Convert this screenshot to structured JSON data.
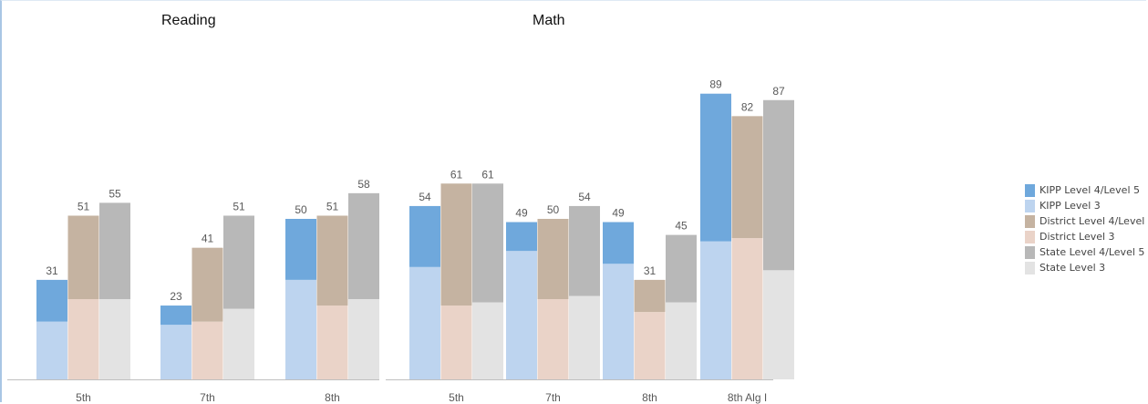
{
  "chart_data": {
    "type": "bar",
    "sections": [
      {
        "title": "Reading",
        "categories": [
          "5th",
          "7th",
          "8th"
        ]
      },
      {
        "title": "Math",
        "categories": [
          "5th",
          "7th",
          "8th",
          "8th Alg I"
        ]
      }
    ],
    "groups": [
      {
        "section": 0,
        "category": "5th",
        "kipp": {
          "level3": 18,
          "level45": 13,
          "label": "31"
        },
        "district": {
          "level3": 25,
          "level45": 26,
          "label": "51"
        },
        "state": {
          "level3": 25,
          "level45": 30,
          "label": "55"
        }
      },
      {
        "section": 0,
        "category": "7th",
        "kipp": {
          "level3": 17,
          "level45": 6,
          "label": "23"
        },
        "district": {
          "level3": 18,
          "level45": 23,
          "label": "41"
        },
        "state": {
          "level3": 22,
          "level45": 29,
          "label": "51"
        }
      },
      {
        "section": 0,
        "category": "8th",
        "kipp": {
          "level3": 31,
          "level45": 19,
          "label": "50"
        },
        "district": {
          "level3": 23,
          "level45": 28,
          "label": "51"
        },
        "state": {
          "level3": 25,
          "level45": 33,
          "label": "58"
        }
      },
      {
        "section": 1,
        "category": "5th",
        "kipp": {
          "level3": 35,
          "level45": 19,
          "label": "54"
        },
        "district": {
          "level3": 23,
          "level45": 38,
          "label": "61"
        },
        "state": {
          "level3": 24,
          "level45": 37,
          "label": "61"
        }
      },
      {
        "section": 1,
        "category": "7th",
        "kipp": {
          "level3": 40,
          "level45": 9,
          "label": "49"
        },
        "district": {
          "level3": 25,
          "level45": 25,
          "label": "50"
        },
        "state": {
          "level3": 26,
          "level45": 28,
          "label": "54"
        }
      },
      {
        "section": 1,
        "category": "8th",
        "kipp": {
          "level3": 36,
          "level45": 13,
          "label": "49"
        },
        "district": {
          "level3": 21,
          "level45": 10,
          "label": "31"
        },
        "state": {
          "level3": 24,
          "level45": 21,
          "label": "45"
        }
      },
      {
        "section": 1,
        "category": "8th Alg I",
        "kipp": {
          "level3": 43,
          "level45": 46,
          "label": "89"
        },
        "district": {
          "level3": 44,
          "level45": 38,
          "label": "82"
        },
        "state": {
          "level3": 34,
          "level45": 53,
          "label": "87"
        }
      }
    ],
    "legend": [
      {
        "label": "KIPP Level 4/Level 5",
        "color": "#6fa8dc"
      },
      {
        "label": "KIPP Level 3",
        "color": "#bdd4ef"
      },
      {
        "label": "District Level 4/Level 5",
        "color": "#c5b3a1"
      },
      {
        "label": "District Level 3",
        "color": "#ead3c8"
      },
      {
        "label": "State Level 4/Level 5",
        "color": "#b8b8b8"
      },
      {
        "label": "State Level 3",
        "color": "#e3e3e3"
      }
    ],
    "legend_position": "right",
    "colors": {
      "kipp_level45": "#6fa8dc",
      "kipp_level3": "#bdd4ef",
      "district_level45": "#c5b3a1",
      "district_level3": "#ead3c8",
      "state_level45": "#b8b8b8",
      "state_level3": "#e3e3e3",
      "label_text": "#595959",
      "axis": "#bfbfbf"
    },
    "grid": false
  }
}
